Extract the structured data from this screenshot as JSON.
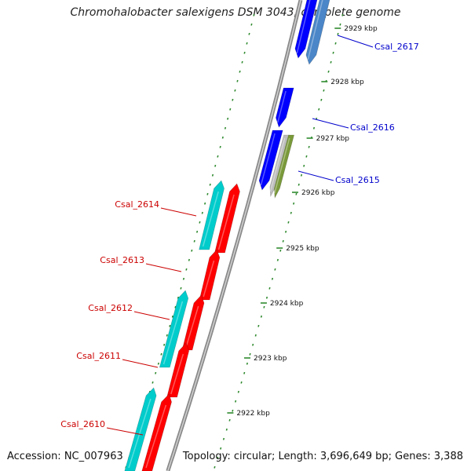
{
  "title": "Chromohalobacter salexigens DSM 3043, complete genome",
  "accession_text": "Accession: NC_007963",
  "topology_text": "Topology: circular; Length: 3,696,649 bp; Genes: 3,388",
  "colors": {
    "backbone": "#8a8a8a",
    "tick": "#2f8a2f",
    "forward_gene": "#0000ff",
    "forward_gene_alt": "#4a86c8",
    "forward_gene_other": "#7a9a3a",
    "forward_gene_gray": "#bdbdbd",
    "reverse_gene": "#ff0000",
    "reverse_cds": "#00cccc",
    "forward_label": "#0000cc",
    "reverse_label": "#cc0000"
  },
  "chart_data": {
    "type": "genome-map",
    "ticks_kbp": [
      2929,
      2928,
      2927,
      2926,
      2925,
      2924,
      2923,
      2922
    ],
    "tick_labels": [
      "2929 kbp",
      "2928 kbp",
      "2927 kbp",
      "2926 kbp",
      "2925 kbp",
      "2924 kbp",
      "2923 kbp",
      "2922 kbp"
    ],
    "forward_genes": [
      {
        "name": "Csal_2617"
      },
      {
        "name": "Csal_2616"
      },
      {
        "name": "Csal_2615"
      }
    ],
    "reverse_genes": [
      {
        "name": "Csal_2614"
      },
      {
        "name": "Csal_2613"
      },
      {
        "name": "Csal_2612"
      },
      {
        "name": "Csal_2611"
      },
      {
        "name": "Csal_2610"
      }
    ]
  }
}
